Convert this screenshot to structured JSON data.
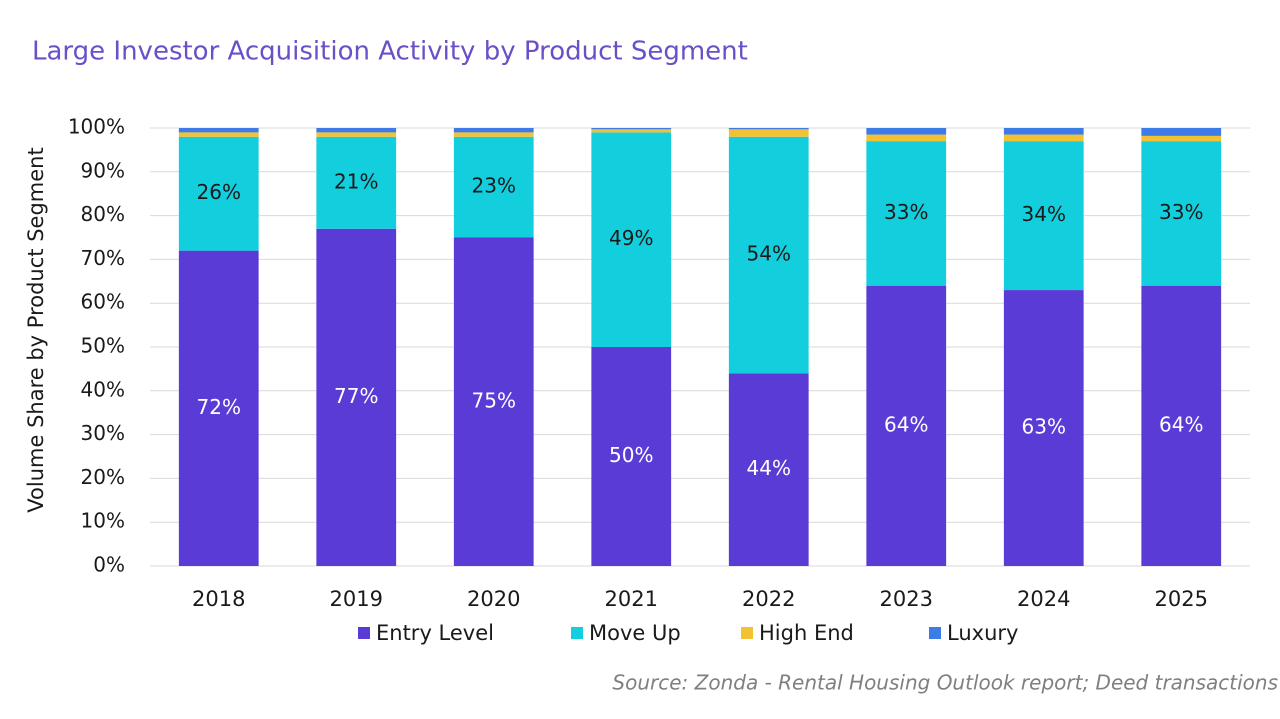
{
  "chart_data": {
    "type": "stacked_bar",
    "title": "Large Investor Acquisition Activity by Product Segment",
    "y_label": "Volume Share by Product Segment",
    "source": "Source: Zonda - Rental Housing Outlook report; Deed transactions",
    "categories": [
      "2018",
      "2019",
      "2020",
      "2021",
      "2022",
      "2023",
      "2024",
      "2025"
    ],
    "series": [
      {
        "name": "Entry Level",
        "color": "#5b3bd5",
        "label_color": "#ffffff",
        "values": [
          72,
          77,
          75,
          50,
          44,
          64,
          63,
          64
        ],
        "value_labels": [
          "72%",
          "77%",
          "75%",
          "50%",
          "44%",
          "64%",
          "63%",
          "64%"
        ]
      },
      {
        "name": "Move Up",
        "color": "#13cedc",
        "label_color": "#1a1a1a",
        "values": [
          26,
          21,
          23,
          49,
          54,
          33,
          34,
          33
        ],
        "value_labels": [
          "26%",
          "21%",
          "23%",
          "49%",
          "54%",
          "33%",
          "34%",
          "33%"
        ]
      },
      {
        "name": "High End",
        "color": "#f2c232",
        "values": [
          1,
          1,
          1,
          0.7,
          1.7,
          1.5,
          1.5,
          1.2
        ]
      },
      {
        "name": "Luxury",
        "color": "#3d7be6",
        "values": [
          1,
          1,
          1,
          0.3,
          0.3,
          1.5,
          1.5,
          1.8
        ]
      }
    ],
    "ylim": [
      0,
      100
    ],
    "yticks": [
      {
        "value": 0,
        "label": "0%"
      },
      {
        "value": 10,
        "label": "10%"
      },
      {
        "value": 20,
        "label": "20%"
      },
      {
        "value": 30,
        "label": "30%"
      },
      {
        "value": 40,
        "label": "40%"
      },
      {
        "value": 50,
        "label": "50%"
      },
      {
        "value": 60,
        "label": "60%"
      },
      {
        "value": 70,
        "label": "70%"
      },
      {
        "value": 80,
        "label": "80%"
      },
      {
        "value": 90,
        "label": "90%"
      },
      {
        "value": 100,
        "label": "100%"
      }
    ],
    "grid": true
  }
}
